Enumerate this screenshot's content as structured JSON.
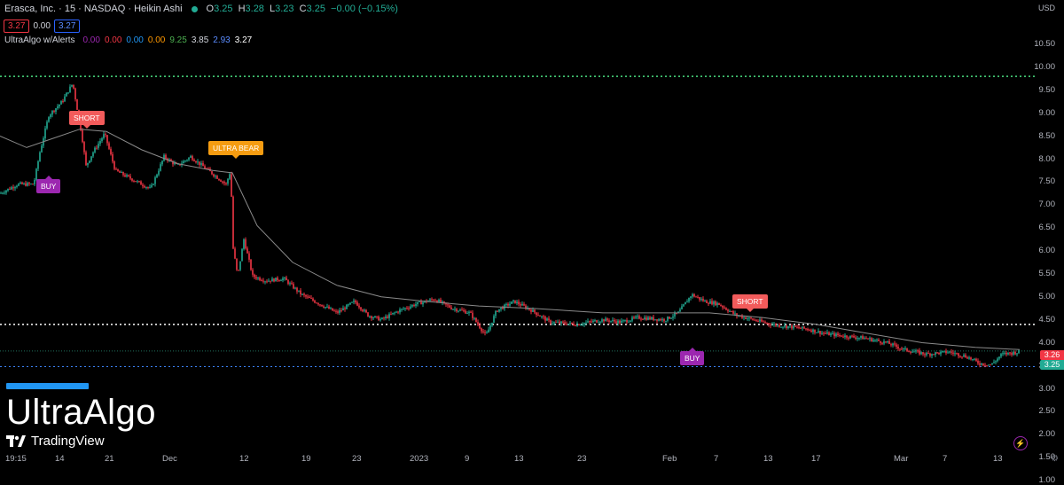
{
  "header": {
    "symbol_title": "Erasca, Inc. · 15 · NASDAQ · Heikin Ashi",
    "ohlc": [
      {
        "k": "O",
        "v": "3.25"
      },
      {
        "k": "H",
        "v": "3.28"
      },
      {
        "k": "L",
        "v": "3.23"
      },
      {
        "k": "C",
        "v": "3.25"
      }
    ],
    "change": "−0.00 (−0.15%)",
    "sell_price": "3.27",
    "spread": "0.00",
    "buy_price": "3.27"
  },
  "indicator": {
    "name": "UltraAlgo w/Alerts",
    "values": [
      {
        "v": "0.00",
        "color": "#9c27b0"
      },
      {
        "v": "0.00",
        "color": "#f23645"
      },
      {
        "v": "0.00",
        "color": "#2196f3"
      },
      {
        "v": "0.00",
        "color": "#ff9800"
      },
      {
        "v": "9.25",
        "color": "#4caf50"
      },
      {
        "v": "3.85",
        "color": "#d1d4dc"
      },
      {
        "v": "2.93",
        "color": "#5b8cff"
      },
      {
        "v": "3.27",
        "color": "#ffffff"
      }
    ]
  },
  "currency": "USD",
  "price_axis": [
    "10.50",
    "10.00",
    "9.50",
    "9.00",
    "8.50",
    "8.00",
    "7.50",
    "7.00",
    "6.50",
    "6.00",
    "5.50",
    "5.00",
    "4.50",
    "4.00",
    "3.50",
    "3.00",
    "2.50",
    "2.00",
    "1.50",
    "1.00"
  ],
  "time_axis": [
    "19:15",
    "14",
    "21",
    "Dec",
    "12",
    "19",
    "23",
    "2023",
    "9",
    "13",
    "23",
    "Feb",
    "7",
    "13",
    "17",
    "Mar",
    "7",
    "13"
  ],
  "price_labels": {
    "upper": "3.26",
    "lower": "3.25"
  },
  "signals": [
    {
      "label": "BUY",
      "type": "buy"
    },
    {
      "label": "SHORT",
      "type": "short"
    },
    {
      "label": "ULTRA BEAR",
      "type": "bear"
    },
    {
      "label": "BUY",
      "type": "buy"
    },
    {
      "label": "SHORT",
      "type": "short"
    }
  ],
  "levels": {
    "green": 9.25,
    "white": 3.85,
    "blue": 2.93,
    "teal": 3.27
  },
  "brand": {
    "name": "UltraAlgo",
    "platform": "TradingView"
  },
  "colors": {
    "up": "#22ab94",
    "down": "#f23645",
    "ma": "#8a8a8a"
  },
  "chart_data": {
    "type": "line",
    "title": "Erasca, Inc. · 15 · NASDAQ · Heikin Ashi",
    "ylim": [
      1.0,
      10.7
    ],
    "x": [
      "19:15",
      "14",
      "21",
      "Dec",
      "12",
      "19",
      "23",
      "2023",
      "9",
      "13",
      "23",
      "Feb",
      "7",
      "13",
      "17",
      "Mar",
      "7",
      "13"
    ],
    "series": [
      {
        "values": [
          6.7,
          8.3,
          7.6,
          7.1,
          7.0,
          5.0,
          4.5,
          4.1,
          4.2,
          4.25,
          3.9,
          4.2,
          4.3,
          3.95,
          3.7,
          3.4,
          3.2,
          3.25
        ]
      },
      {
        "values": [
          7.9,
          7.85,
          7.7,
          7.35,
          7.25,
          5.8,
          4.9,
          4.45,
          4.35,
          4.25,
          4.15,
          4.15,
          4.1,
          4.05,
          3.9,
          3.75,
          3.5,
          3.3
        ]
      }
    ]
  }
}
